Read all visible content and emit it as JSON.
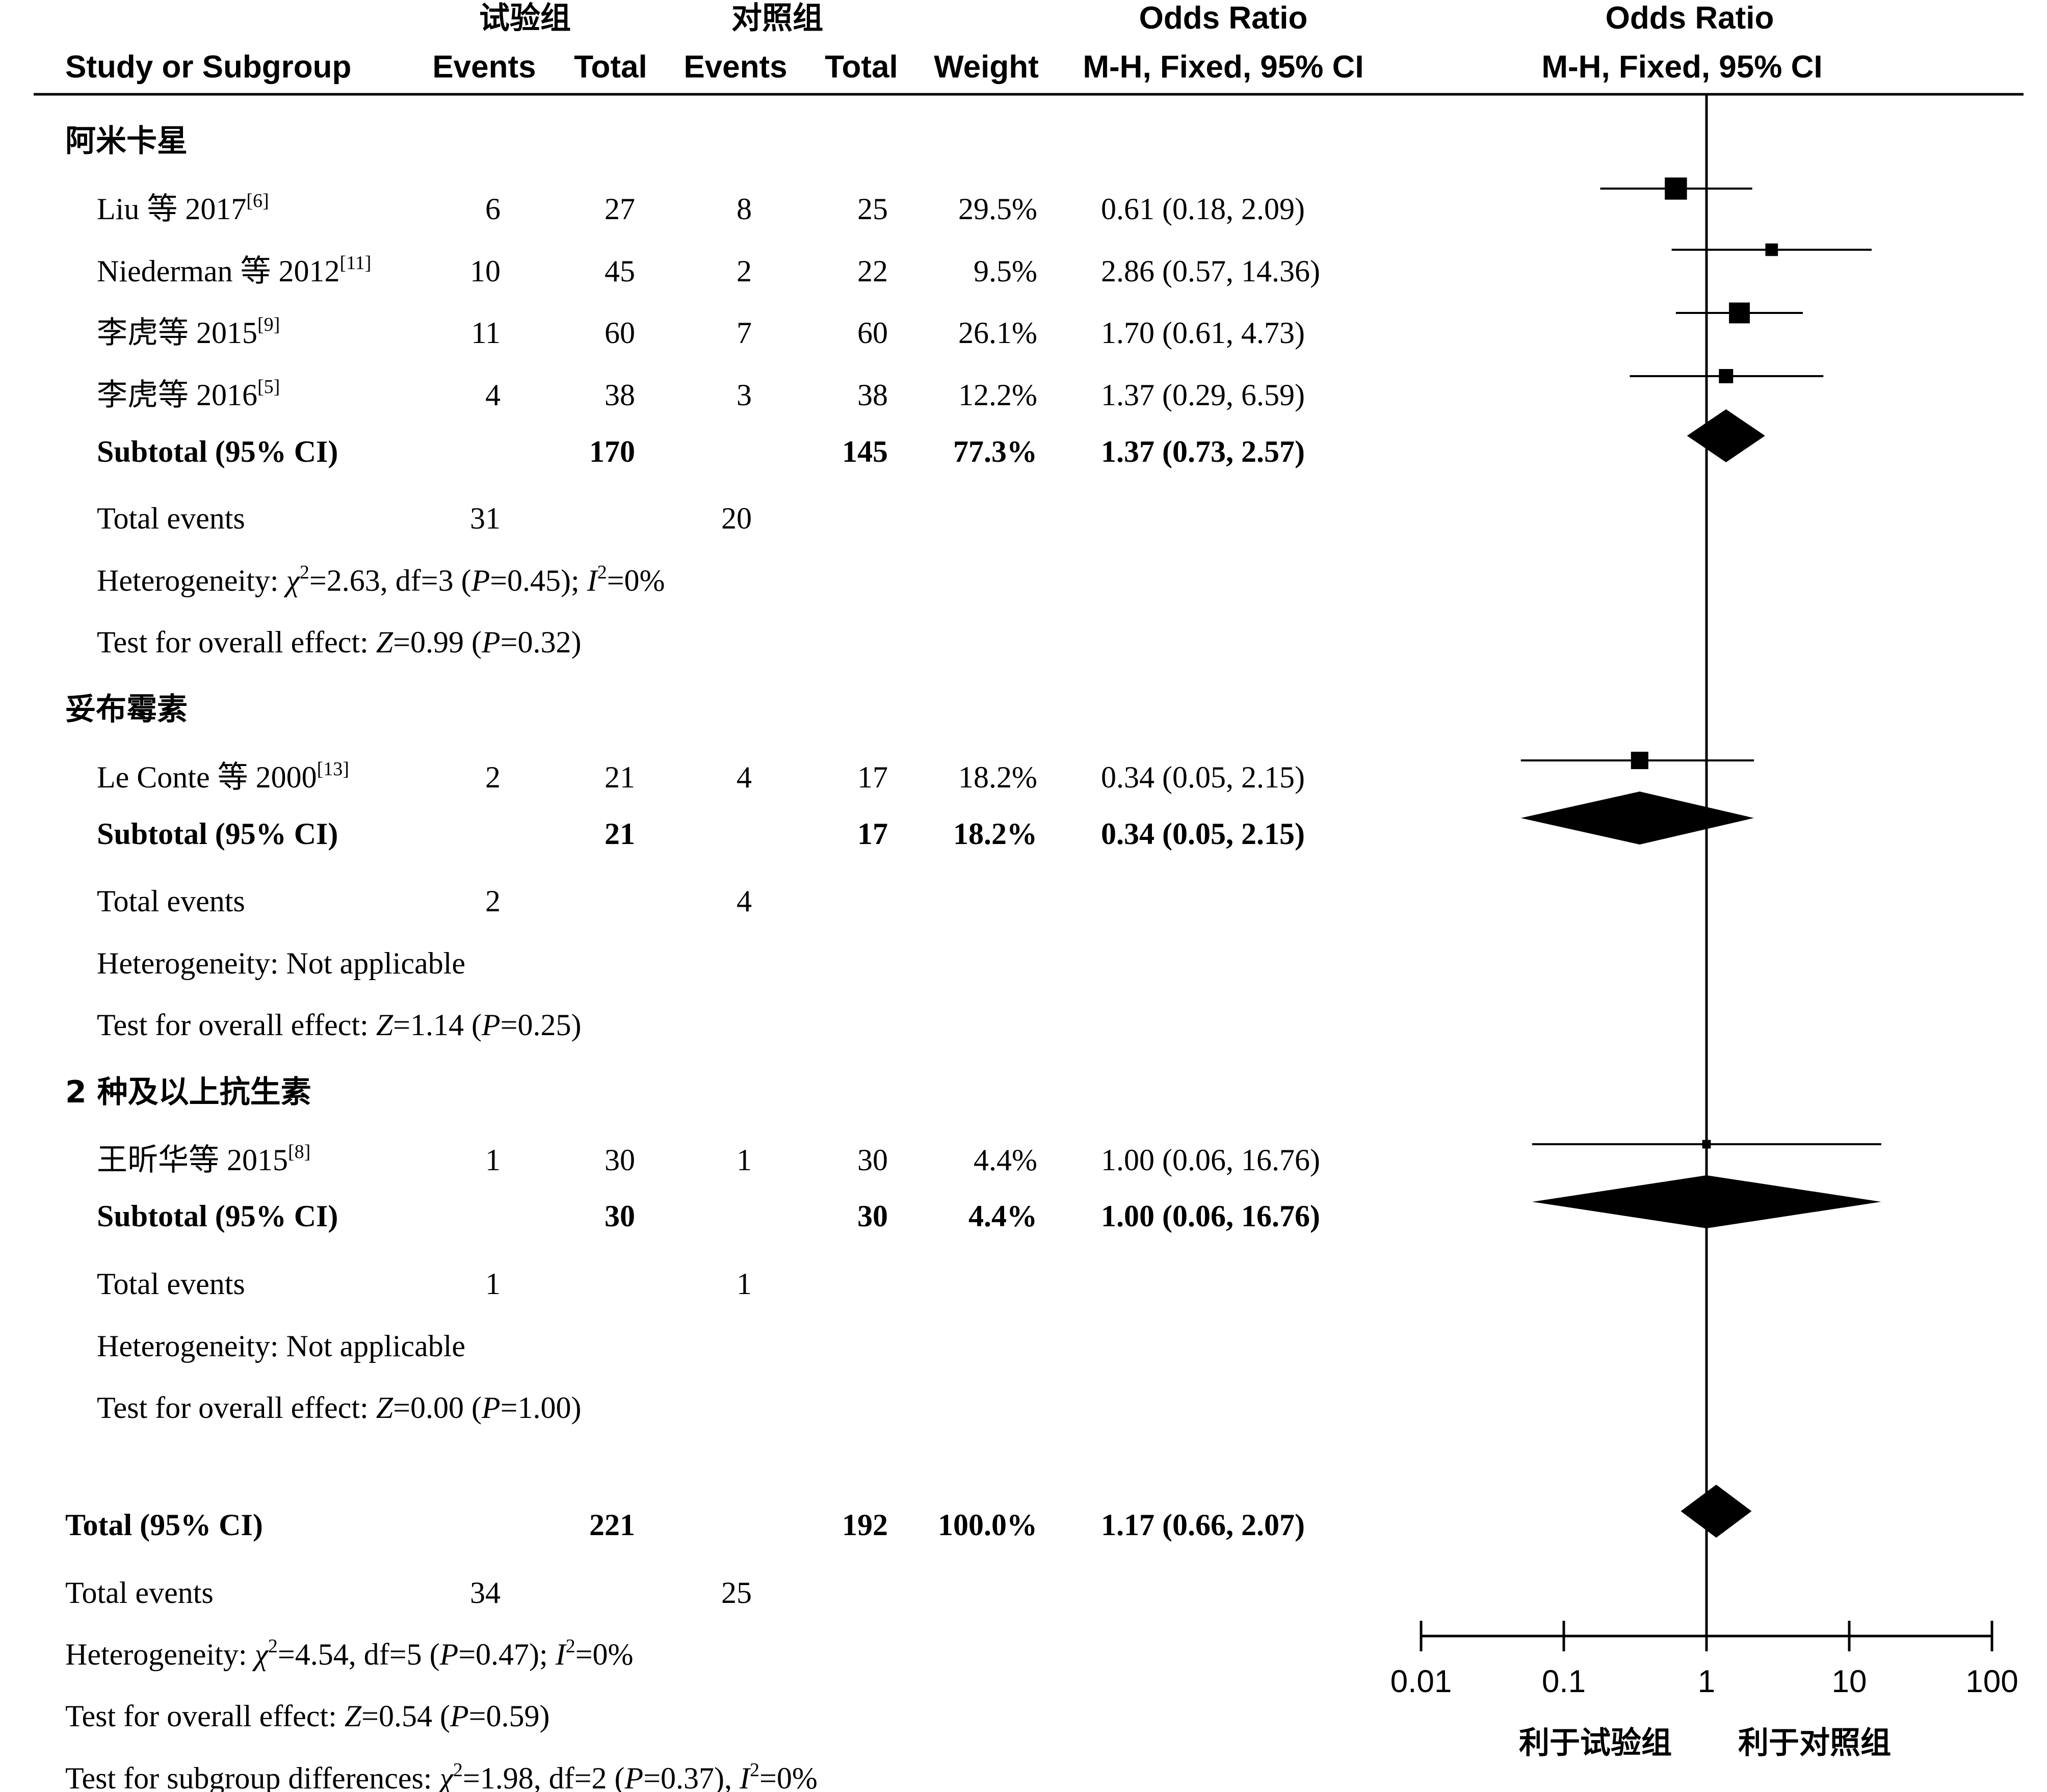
{
  "header": {
    "group_experimental": "试验组",
    "group_control": "对照组",
    "study_or_subgroup": "Study or Subgroup",
    "events": "Events",
    "total": "Total",
    "weight": "Weight",
    "or_title": "Odds Ratio",
    "or_method": "M-H, Fixed, 95% CI"
  },
  "subgroups": [
    {
      "name": "阿米卡星",
      "studies": [
        {
          "author": "Liu 等 2017",
          "ref": "[6]",
          "e_events": "6",
          "e_total": "27",
          "c_events": "8",
          "c_total": "25",
          "weight": "29.5%",
          "ci_text": "0.61 (0.18, 2.09)"
        },
        {
          "author": "Niederman 等 2012",
          "ref": "[11]",
          "e_events": "10",
          "e_total": "45",
          "c_events": "2",
          "c_total": "22",
          "weight": "9.5%",
          "ci_text": "2.86 (0.57, 14.36)"
        },
        {
          "author": "李虎等 2015",
          "ref": "[9]",
          "e_events": "11",
          "e_total": "60",
          "c_events": "7",
          "c_total": "60",
          "weight": "26.1%",
          "ci_text": "1.70 (0.61, 4.73)"
        },
        {
          "author": "李虎等 2016",
          "ref": "[5]",
          "e_events": "4",
          "e_total": "38",
          "c_events": "3",
          "c_total": "38",
          "weight": "12.2%",
          "ci_text": "1.37 (0.29, 6.59)"
        }
      ],
      "subtotal": {
        "label": "Subtotal (95% CI)",
        "e_total": "170",
        "c_total": "145",
        "weight": "77.3%",
        "ci_text": "1.37 (0.73, 2.57)"
      },
      "total_events": {
        "label": "Total events",
        "e": "31",
        "c": "20"
      },
      "heterogeneity": {
        "prefix": "Heterogeneity: ",
        "chi_sym": "χ",
        "chi_val": "=2.63, df=3 (",
        "p_sym": "P",
        "p_val": "=0.45); ",
        "i_sym": "I",
        "i_val": "=0%"
      },
      "overall": {
        "prefix": "Test for overall effect: ",
        "z_sym": "Z",
        "z_val": "=0.99 (",
        "p_sym": "P",
        "p_val": "=0.32)"
      }
    },
    {
      "name": "妥布霉素",
      "studies": [
        {
          "author": "Le Conte 等 2000",
          "ref": "[13]",
          "e_events": "2",
          "e_total": "21",
          "c_events": "4",
          "c_total": "17",
          "weight": "18.2%",
          "ci_text": "0.34 (0.05, 2.15)"
        }
      ],
      "subtotal": {
        "label": "Subtotal (95% CI)",
        "e_total": "21",
        "c_total": "17",
        "weight": "18.2%",
        "ci_text": "0.34 (0.05, 2.15)"
      },
      "total_events": {
        "label": "Total events",
        "e": "2",
        "c": "4"
      },
      "heterogeneity_text": "Heterogeneity: Not applicable",
      "overall": {
        "prefix": "Test for overall effect: ",
        "z_sym": "Z",
        "z_val": "=1.14 (",
        "p_sym": "P",
        "p_val": "=0.25)"
      }
    },
    {
      "name": "2 种及以上抗生素",
      "studies": [
        {
          "author": "王昕华等 2015",
          "ref": "[8]",
          "e_events": "1",
          "e_total": "30",
          "c_events": "1",
          "c_total": "30",
          "weight": "4.4%",
          "ci_text": "1.00 (0.06, 16.76)"
        }
      ],
      "subtotal": {
        "label": "Subtotal (95% CI)",
        "e_total": "30",
        "c_total": "30",
        "weight": "4.4%",
        "ci_text": "1.00 (0.06, 16.76)"
      },
      "total_events": {
        "label": "Total events",
        "e": "1",
        "c": "1"
      },
      "heterogeneity_text": "Heterogeneity: Not applicable",
      "overall": {
        "prefix": "Test for overall effect: ",
        "z_sym": "Z",
        "z_val": "=0.00 (",
        "p_sym": "P",
        "p_val": "=1.00)"
      }
    }
  ],
  "total": {
    "label": "Total (95% CI)",
    "e_total": "221",
    "c_total": "192",
    "weight": "100.0%",
    "ci_text": "1.17 (0.66, 2.07)",
    "total_events": {
      "label": "Total events",
      "e": "34",
      "c": "25"
    },
    "heterogeneity": {
      "prefix": "Heterogeneity: ",
      "chi_sym": "χ",
      "chi_val": "=4.54, df=5 (",
      "p_sym": "P",
      "p_val": "=0.47); ",
      "i_sym": "I",
      "i_val": "=0%"
    },
    "overall": {
      "prefix": "Test for overall effect: ",
      "z_sym": "Z",
      "z_val": "=0.54 (",
      "p_sym": "P",
      "p_val": "=0.59)"
    },
    "subgroup_diff": {
      "prefix": "Test for subgroup differences: ",
      "chi_sym": "χ",
      "chi_val": "=1.98, df=2 (",
      "p_sym": "P",
      "p_val": "=0.37), ",
      "i_sym": "I",
      "i_val": "=0%"
    }
  },
  "axis": {
    "favours_left": "利于试验组",
    "favours_right": "利于对照组"
  },
  "chart_data": {
    "type": "forest",
    "x_scale": "log",
    "xlim": [
      0.01,
      100
    ],
    "x_ticks": [
      0.01,
      0.1,
      1,
      10,
      100
    ],
    "x_tick_labels": [
      "0.01",
      "0.1",
      "1",
      "10",
      "100"
    ],
    "null_line": 1,
    "studies": [
      {
        "label": "Liu 等 2017",
        "or": 0.61,
        "lo": 0.18,
        "hi": 2.09,
        "weight": 29.5
      },
      {
        "label": "Niederman 等 2012",
        "or": 2.86,
        "lo": 0.57,
        "hi": 14.36,
        "weight": 9.5
      },
      {
        "label": "李虎等 2015",
        "or": 1.7,
        "lo": 0.61,
        "hi": 4.73,
        "weight": 26.1
      },
      {
        "label": "李虎等 2016",
        "or": 1.37,
        "lo": 0.29,
        "hi": 6.59,
        "weight": 12.2
      },
      {
        "label": "Le Conte 等 2000",
        "or": 0.34,
        "lo": 0.05,
        "hi": 2.15,
        "weight": 18.2
      },
      {
        "label": "王昕华等 2015",
        "or": 1.0,
        "lo": 0.06,
        "hi": 16.76,
        "weight": 4.4
      }
    ],
    "subtotals": [
      {
        "label": "阿米卡星",
        "or": 1.37,
        "lo": 0.73,
        "hi": 2.57
      },
      {
        "label": "妥布霉素",
        "or": 0.34,
        "lo": 0.05,
        "hi": 2.15
      },
      {
        "label": "2 种及以上抗生素",
        "or": 1.0,
        "lo": 0.06,
        "hi": 16.76
      }
    ],
    "overall": {
      "label": "Total (95% CI)",
      "or": 1.17,
      "lo": 0.66,
      "hi": 2.07
    }
  }
}
